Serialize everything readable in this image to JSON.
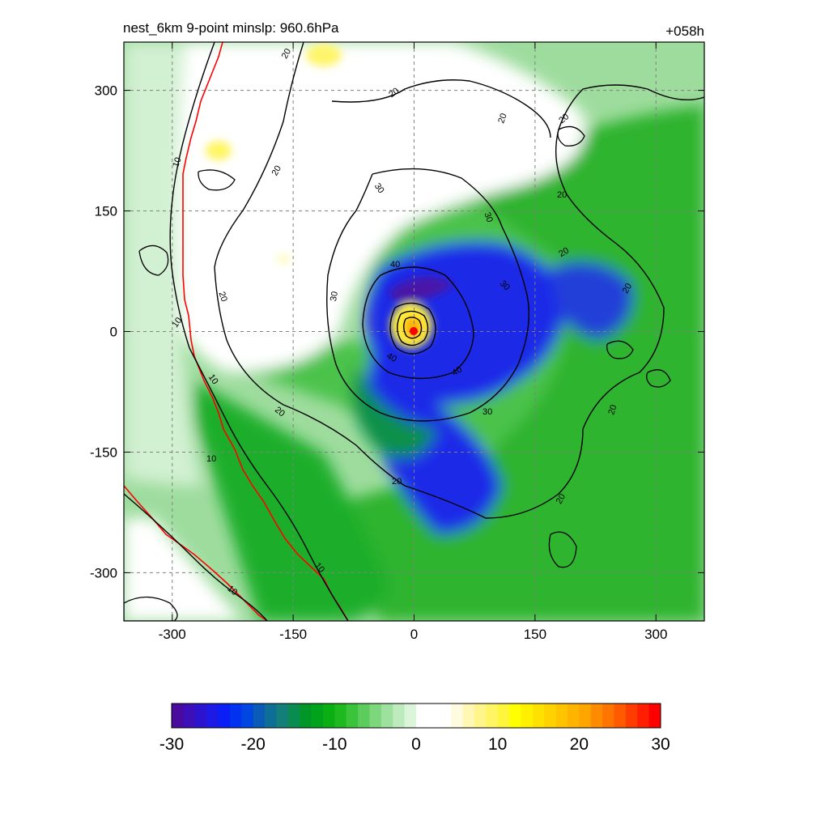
{
  "chart_data": {
    "type": "heatmap",
    "title": "nest_6km  9-point minslp: 960.6hPa",
    "forecast_hour": "+058h",
    "xlim": [
      -360,
      360
    ],
    "ylim": [
      -360,
      360
    ],
    "x_ticks": [
      -300,
      -150,
      0,
      150,
      300
    ],
    "y_ticks": [
      -300,
      -150,
      0,
      150,
      300
    ],
    "x_tick_labels": [
      "-300",
      "-150",
      "0",
      "150",
      "300"
    ],
    "y_tick_labels": [
      "-300",
      "-150",
      "0",
      "150",
      "300"
    ],
    "grid": "dashed",
    "colorbar": {
      "min": -30,
      "max": 30,
      "tick_values": [
        -30,
        -20,
        -10,
        0,
        10,
        20,
        30
      ],
      "tick_labels": [
        "-30",
        "-20",
        "-10",
        "0",
        "10",
        "20",
        "30"
      ],
      "colors": [
        "#4b0a9e",
        "#3d0fb8",
        "#2c14cf",
        "#1e1ae6",
        "#0a1ef5",
        "#0032f0",
        "#0046e0",
        "#0a5ab8",
        "#0f6e96",
        "#147e78",
        "#0a8c50",
        "#009628",
        "#00a41c",
        "#0aaf14",
        "#1eb91e",
        "#3cc33c",
        "#5ccd5c",
        "#7dd77d",
        "#9ee19e",
        "#bdebbd",
        "#daf5da",
        "#ffffff",
        "#ffffff",
        "#ffffff",
        "#fffbe0",
        "#fff8b4",
        "#fff58a",
        "#fff564",
        "#fff53c",
        "#ffff00",
        "#fff000",
        "#ffe100",
        "#ffd200",
        "#ffc300",
        "#ffb400",
        "#ffa500",
        "#ff8c00",
        "#ff7300",
        "#ff5a00",
        "#ff3c00",
        "#ff1e00",
        "#ff0000"
      ]
    },
    "fill_field": "tangential wind difference (shaded)",
    "contour_levels": [
      10,
      20,
      30,
      40
    ],
    "contour_labels_shown": [
      "10",
      "20",
      "30",
      "40"
    ],
    "center_marker": {
      "x": 0,
      "y": 0,
      "color": "#ff0000"
    }
  }
}
